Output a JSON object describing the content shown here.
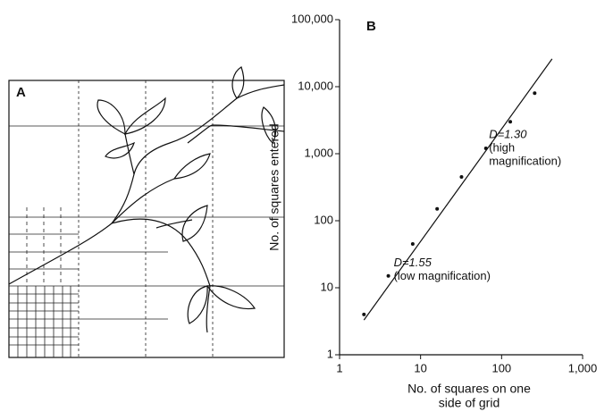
{
  "drawing": {
    "label": "A"
  },
  "chart_data": {
    "type": "scatter",
    "panel_label": "B",
    "x_label": [
      "No. of squares on one",
      "side of grid"
    ],
    "y_label": "No. of squares entered",
    "log_x": true,
    "log_y": true,
    "xlim": [
      1,
      1000
    ],
    "ylim": [
      1,
      100000
    ],
    "xticks": [
      1,
      10,
      100,
      {
        "value": 1000,
        "label": "1,000"
      }
    ],
    "yticks": [
      1,
      10,
      100,
      {
        "value": 1000,
        "label": "1,000"
      },
      {
        "value": 10000,
        "label": "10,000"
      },
      {
        "value": 100000,
        "label": "100,000"
      }
    ],
    "series": [
      {
        "color": "#111111",
        "x": [
          2,
          4,
          8,
          16,
          32,
          64,
          128,
          256
        ],
        "values": [
          4,
          15,
          45,
          150,
          450,
          1200,
          3000,
          8000
        ]
      },
      {
        "type": "line",
        "color": "#111111",
        "x": [
          2,
          420
        ],
        "values": [
          3.3,
          26000
        ]
      }
    ],
    "annotations": [
      {
        "text": "D=1.30",
        "lines": [
          "(high",
          "magnification)"
        ],
        "x": 60,
        "y": 1400
      },
      {
        "text": "D=1.55",
        "lines": [
          "(low magnification)"
        ],
        "x": 4,
        "y": 17
      }
    ]
  }
}
